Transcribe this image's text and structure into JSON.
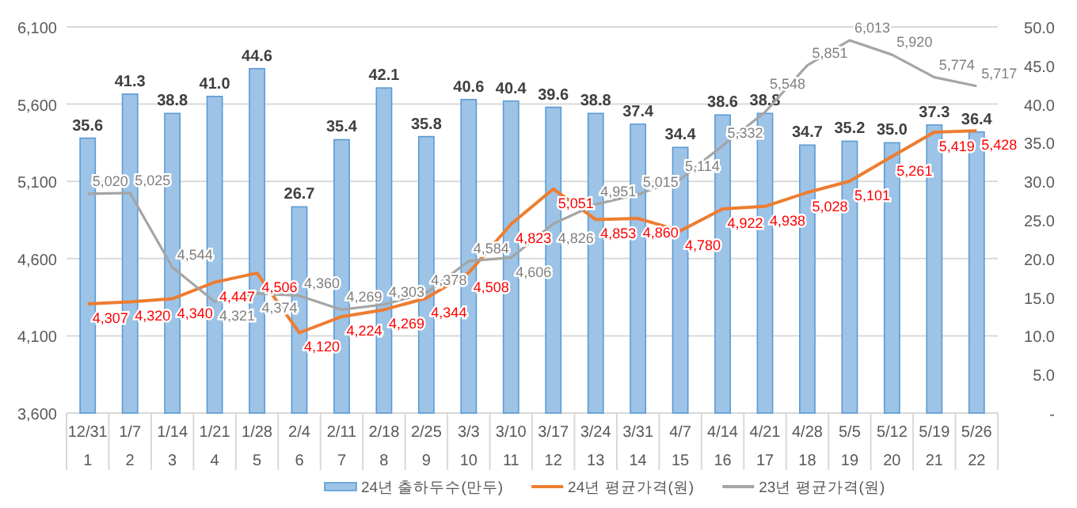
{
  "chart_data": {
    "type": "bar",
    "categories": [
      "12/31\n1",
      "1/7\n2",
      "1/14\n3",
      "1/21\n4",
      "1/28\n5",
      "2/4\n6",
      "2/11\n7",
      "2/18\n8",
      "2/25\n9",
      "3/3\n10",
      "3/10\n11",
      "3/17\n12",
      "3/24\n13",
      "3/31\n14",
      "4/7\n15",
      "4/14\n16",
      "4/21\n17",
      "4/28\n18",
      "5/5\n19",
      "5/12\n20",
      "5/19\n21",
      "5/26\n22"
    ],
    "series": [
      {
        "name": "24년 출하두수(만두)",
        "axis": "y2",
        "color": "#9dc3e6",
        "values": [
          35.6,
          41.3,
          38.8,
          41.0,
          44.6,
          26.7,
          35.4,
          42.1,
          35.8,
          40.6,
          40.4,
          39.6,
          38.8,
          37.4,
          34.4,
          38.6,
          38.8,
          34.7,
          35.2,
          35.0,
          37.3,
          36.4
        ],
        "value_labels": [
          "35.6",
          "41.3",
          "38.8",
          "41.0",
          "44.6",
          "26.7",
          "35.4",
          "42.1",
          "35.8",
          "40.6",
          "40.4",
          "39.6",
          "38.8",
          "37.4",
          "34.4",
          "38.6",
          "38.8",
          "34.7",
          "35.2",
          "35.0",
          "37.3",
          "36.4"
        ]
      },
      {
        "name": "24년 평균가격(원)",
        "type": "line",
        "color": "#ed7d31",
        "values": [
          4307,
          4320,
          4340,
          4447,
          4506,
          4120,
          4224,
          4269,
          4344,
          4508,
          4823,
          5051,
          4853,
          4860,
          4780,
          4922,
          4938,
          5028,
          5101,
          5261,
          5419,
          5428
        ],
        "value_labels": [
          "4,307",
          "4,320",
          "4,340",
          "4,447",
          "4,506",
          "4,120",
          "4,224",
          "4,269",
          "4,344",
          "4,508",
          "4,823",
          "5,051",
          "4,853",
          "4,860",
          "4,780",
          "4,922",
          "4,938",
          "5,028",
          "5,101",
          "5,261",
          "5,419",
          "5,428"
        ]
      },
      {
        "name": "23년 평균가격(원)",
        "type": "line",
        "color": "#a5a5a5",
        "values": [
          5020,
          5025,
          4544,
          4321,
          4374,
          4360,
          4269,
          4303,
          4378,
          4584,
          4606,
          4826,
          4951,
          5015,
          5114,
          5332,
          5548,
          5851,
          6013,
          5920,
          5774,
          5717
        ],
        "value_labels": [
          "5,020",
          "5,025",
          "4,544",
          "4,321",
          "4,374",
          "4,360",
          "4,269",
          "4,303",
          "4,378",
          "4,584",
          "4,606",
          "4,826",
          "4,951",
          "5,015",
          "5,114",
          "5,332",
          "5,548",
          "5,851",
          "6,013",
          "5,920",
          "5,774",
          "5,717"
        ]
      }
    ],
    "ylim": [
      3600,
      6100
    ],
    "yticks": [
      {
        "value": 3600,
        "label": "3,600"
      },
      {
        "value": 4100,
        "label": "4,100"
      },
      {
        "value": 4600,
        "label": "4,600"
      },
      {
        "value": 5100,
        "label": "5,100"
      },
      {
        "value": 5600,
        "label": "5,600"
      },
      {
        "value": 6100,
        "label": "6,100"
      }
    ],
    "y2lim": [
      0,
      50
    ],
    "y2ticks": [
      {
        "value": 0,
        "label": "-"
      },
      {
        "value": 5,
        "label": "5.0"
      },
      {
        "value": 10,
        "label": "10.0"
      },
      {
        "value": 15,
        "label": "15.0"
      },
      {
        "value": 20,
        "label": "20.0"
      },
      {
        "value": 25,
        "label": "25.0"
      },
      {
        "value": 30,
        "label": "30.0"
      },
      {
        "value": 35,
        "label": "35.0"
      },
      {
        "value": 40,
        "label": "40.0"
      },
      {
        "value": 45,
        "label": "45.0"
      },
      {
        "value": 50,
        "label": "50.0"
      }
    ],
    "grid": "y",
    "legend": "bottom",
    "marker": "none",
    "line_style": "solid"
  }
}
